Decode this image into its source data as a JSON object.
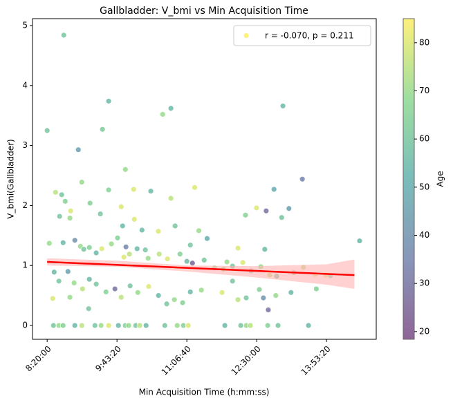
{
  "chart_data": {
    "type": "scatter",
    "title": "Gallbladder: V_bmi vs Min Acquisition Time",
    "x_label": "Min Acquisition Time (h:mm:ss)",
    "y_label": "V_bmi(Gallbladder)",
    "xlim": [
      28950,
      53560
    ],
    "ylim": [
      -0.23,
      5.115
    ],
    "xticks": [
      {
        "value": 30000,
        "label": "8:20:00"
      },
      {
        "value": 35000,
        "label": "9:43:20"
      },
      {
        "value": 40000,
        "label": "11:06:40"
      },
      {
        "value": 45000,
        "label": "12:30:00"
      },
      {
        "value": 50000,
        "label": "13:53:20"
      }
    ],
    "yticks": [
      0,
      1,
      2,
      3,
      4,
      5
    ],
    "colormap": "viridis",
    "colorbar_label": "Age",
    "clim": [
      18.4,
      85
    ],
    "cticks": [
      20,
      30,
      40,
      50,
      60,
      70,
      80
    ],
    "legend": "upper right",
    "series": [
      {
        "name": "r = -0.070, p = 0.211",
        "color": "#fde725",
        "x": [
          30000,
          31190,
          34400,
          33960,
          32230,
          38270,
          38860,
          46880,
          48270,
          46240,
          40560,
          36190,
          37420,
          34400,
          35600,
          30600,
          31040,
          32480,
          31290,
          33070,
          38860,
          44990,
          45680,
          47310,
          44200,
          31680,
          30890,
          31630,
          33810,
          35300,
          36240,
          35400,
          36790,
          39160,
          37960,
          40860,
          46790,
          52370,
          43660,
          42870,
          45580,
          41450,
          40250,
          30150,
          31140,
          31980,
          32380,
          32620,
          33020,
          33510,
          33910,
          34600,
          35040,
          35640,
          35890,
          35490,
          36440,
          37030,
          37230,
          38020,
          38610,
          39510,
          40000,
          40400,
          41240,
          41980,
          42620,
          43270,
          44010,
          44600,
          45300,
          45930,
          46430,
          47660,
          48350,
          49190,
          49940,
          50290,
          30500,
          30840,
          31490,
          31930,
          32530,
          33020,
          33510,
          34210,
          34850,
          35300,
          35940,
          36490,
          37270,
          37970,
          38560,
          39110,
          39700,
          40250,
          41040,
          42520,
          43270,
          43660,
          44250,
          45190,
          45480,
          45830,
          46370,
          47460,
          49270,
          31630,
          32970,
          30400,
          30450,
          30840,
          31140,
          31980,
          32480,
          33420,
          33860,
          34410,
          35100,
          35590,
          35840,
          36340,
          36630,
          37080,
          38420,
          39310,
          39750,
          40100,
          42720,
          43860,
          44260,
          44550,
          45790,
          46530,
          48710
        ],
        "y": [
          3.25,
          4.84,
          3.74,
          3.27,
          2.93,
          3.52,
          3.62,
          3.66,
          2.44,
          2.27,
          2.3,
          2.27,
          2.24,
          2.26,
          2.6,
          2.22,
          2.18,
          2.39,
          2.07,
          2.04,
          2.12,
          1.96,
          1.91,
          1.95,
          1.84,
          1.91,
          1.82,
          1.79,
          1.86,
          1.98,
          1.77,
          1.66,
          1.59,
          1.66,
          1.57,
          1.58,
          1.8,
          1.41,
          1.29,
          1.06,
          1.27,
          1.45,
          1.34,
          1.37,
          1.38,
          1.42,
          1.32,
          1.27,
          1.3,
          1.21,
          1.28,
          1.36,
          1.46,
          1.31,
          1.19,
          1.14,
          1.28,
          1.26,
          1.12,
          1.19,
          1.11,
          1.19,
          1.07,
          1.04,
          1.09,
          0.96,
          0.94,
          0.99,
          1.05,
          0.91,
          0.98,
          0.84,
          0.82,
          0.88,
          0.97,
          0.85,
          0.84,
          0.83,
          0.89,
          0.74,
          0.9,
          0.71,
          0.61,
          0.77,
          0.69,
          0.56,
          0.61,
          0.47,
          0.66,
          0.55,
          0.65,
          0.5,
          0.36,
          0.43,
          0.38,
          0.56,
          0.59,
          0.55,
          0.74,
          0.43,
          0.46,
          0.6,
          0.46,
          0.26,
          0.5,
          0.55,
          0.61,
          0.47,
          0.28,
          0.45,
          0,
          0,
          0,
          0,
          0,
          0,
          0,
          0,
          0,
          0,
          0,
          0,
          0,
          0,
          0,
          0,
          0,
          0,
          0,
          0,
          0,
          0,
          0,
          0,
          0
        ],
        "c": [
          60,
          60,
          55,
          62,
          45,
          70,
          55,
          55,
          35,
          50,
          80,
          80,
          55,
          65,
          70,
          75,
          60,
          70,
          65,
          65,
          75,
          80,
          30,
          45,
          65,
          80,
          60,
          70,
          60,
          80,
          80,
          55,
          55,
          60,
          80,
          70,
          60,
          55,
          80,
          70,
          55,
          50,
          60,
          70,
          55,
          40,
          70,
          60,
          65,
          55,
          80,
          70,
          65,
          35,
          75,
          80,
          55,
          60,
          70,
          75,
          80,
          65,
          55,
          25,
          60,
          70,
          70,
          60,
          80,
          65,
          70,
          75,
          60,
          70,
          75,
          80,
          80,
          65,
          55,
          60,
          45,
          70,
          75,
          55,
          60,
          65,
          30,
          75,
          60,
          70,
          80,
          55,
          60,
          70,
          65,
          55,
          70,
          80,
          60,
          75,
          60,
          65,
          40,
          30,
          70,
          55,
          65,
          70,
          60,
          80,
          60,
          70,
          65,
          55,
          75,
          60,
          70,
          80,
          55,
          65,
          70,
          60,
          75,
          55,
          60,
          70,
          65,
          80,
          55,
          60,
          70,
          75,
          65,
          60,
          55
        ]
      }
    ],
    "fit": {
      "color": "#ff0000",
      "x": [
        30000,
        52000
      ],
      "y": [
        1.06,
        0.84
      ]
    },
    "ci": {
      "color": "#ffb3b3",
      "x": [
        30000,
        35000,
        40000,
        45000,
        50000,
        52000
      ],
      "lower": [
        1.0,
        0.98,
        0.9,
        0.8,
        0.68,
        0.61
      ],
      "upper": [
        1.12,
        1.08,
        1.0,
        0.99,
        1.02,
        1.1
      ]
    }
  }
}
